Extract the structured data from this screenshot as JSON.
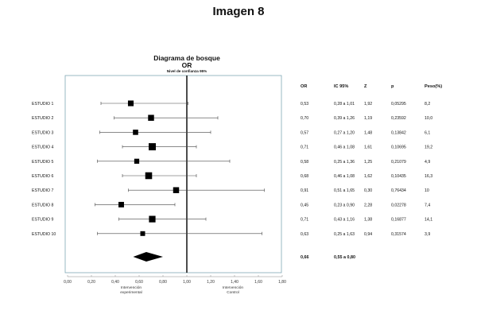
{
  "page": {
    "heading": "Imagen 8"
  },
  "chart_data": {
    "type": "forest",
    "title": "Diagrama de bosque",
    "title_line2": "OR",
    "subtitle": "Nivel de confianza 95%",
    "xlim": [
      0.0,
      1.8
    ],
    "x_ticks": [
      "0,00",
      "0,20",
      "0,40",
      "0,60",
      "0,80",
      "1,00",
      "1,20",
      "1,40",
      "1,60",
      "1,80"
    ],
    "x_tick_values": [
      0.0,
      0.2,
      0.4,
      0.6,
      0.8,
      1.0,
      1.2,
      1.4,
      1.6,
      1.8
    ],
    "reference_line": 1.0,
    "favours_left": [
      "Intervención",
      "experimental"
    ],
    "favours_right": [
      "Intervención",
      "Control"
    ],
    "columns": [
      "OR",
      "IC 95%",
      "Z",
      "p",
      "Peso(%)"
    ],
    "studies": [
      {
        "label": "ESTUDIO 1",
        "or": 0.53,
        "lo": 0.28,
        "hi": 1.01,
        "weight": 8.2,
        "or_text": "0,53",
        "ci_text": "0,28 a 1,01",
        "z_text": "1,92",
        "p_text": "0,05295",
        "w_text": "8,2"
      },
      {
        "label": "ESTUDIO 2",
        "or": 0.7,
        "lo": 0.39,
        "hi": 1.26,
        "weight": 10.0,
        "or_text": "0,70",
        "ci_text": "0,39 a 1,26",
        "z_text": "1,19",
        "p_text": "0,23592",
        "w_text": "10,0"
      },
      {
        "label": "ESTUDIO 3",
        "or": 0.57,
        "lo": 0.27,
        "hi": 1.2,
        "weight": 6.1,
        "or_text": "0,57",
        "ci_text": "0,27 a 1,20",
        "z_text": "1,48",
        "p_text": "0,13842",
        "w_text": "6,1"
      },
      {
        "label": "ESTUDIO 4",
        "or": 0.71,
        "lo": 0.46,
        "hi": 1.08,
        "weight": 19.2,
        "or_text": "0,71",
        "ci_text": "0,46 a 1,08",
        "z_text": "1,61",
        "p_text": "0,10695",
        "w_text": "19,2"
      },
      {
        "label": "ESTUDIO 5",
        "or": 0.58,
        "lo": 0.25,
        "hi": 1.36,
        "weight": 4.9,
        "or_text": "0,58",
        "ci_text": "0,25 a 1,36",
        "z_text": "1,25",
        "p_text": "0,21079",
        "w_text": "4,9"
      },
      {
        "label": "ESTUDIO 6",
        "or": 0.68,
        "lo": 0.46,
        "hi": 1.08,
        "weight": 16.3,
        "or_text": "0,68",
        "ci_text": "0,46 a 1,08",
        "z_text": "1,62",
        "p_text": "0,10435",
        "w_text": "16,3"
      },
      {
        "label": "ESTUDIO 7",
        "or": 0.91,
        "lo": 0.51,
        "hi": 1.65,
        "weight": 10,
        "or_text": "0,91",
        "ci_text": "0,51 a 1,65",
        "z_text": "0,30",
        "p_text": "0,76434",
        "w_text": "10"
      },
      {
        "label": "ESTUDIO 8",
        "or": 0.45,
        "lo": 0.23,
        "hi": 0.9,
        "weight": 7.4,
        "or_text": "0,45",
        "ci_text": "0,23 a 0,90",
        "z_text": "2,28",
        "p_text": "0,02278",
        "w_text": "7,4"
      },
      {
        "label": "ESTUDIO 9",
        "or": 0.71,
        "lo": 0.43,
        "hi": 1.16,
        "weight": 14.1,
        "or_text": "0,71",
        "ci_text": "0,43 a 1,16",
        "z_text": "1,38",
        "p_text": "0,16877",
        "w_text": "14,1"
      },
      {
        "label": "ESTUDIO 10",
        "or": 0.63,
        "lo": 0.25,
        "hi": 1.63,
        "weight": 3.9,
        "or_text": "0,63",
        "ci_text": "0,25 a 1,63",
        "z_text": "0,94",
        "p_text": "0,31574",
        "w_text": "3,9"
      }
    ],
    "pooled": {
      "or": 0.66,
      "lo": 0.55,
      "hi": 0.8,
      "or_text": "0,66",
      "ci_text": "0,55 a 0,80"
    },
    "colors": {
      "marker": "#000000",
      "frame": "#7fa7b5",
      "line": "#000000",
      "whisker": "#444444"
    }
  }
}
